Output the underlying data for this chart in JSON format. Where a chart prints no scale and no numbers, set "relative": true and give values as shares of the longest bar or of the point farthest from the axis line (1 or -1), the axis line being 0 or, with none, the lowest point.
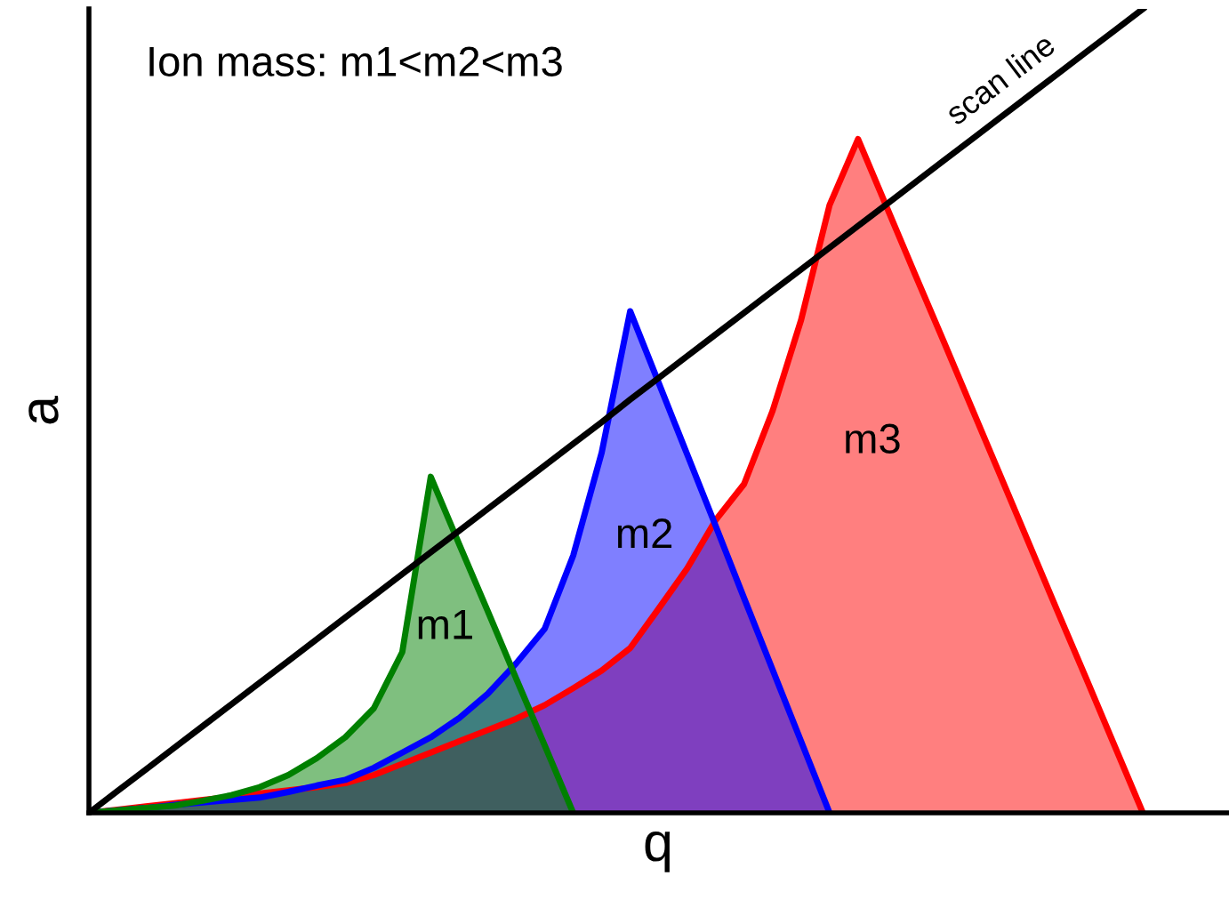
{
  "chart_data": {
    "type": "area",
    "relative": true,
    "xlabel": "q",
    "ylabel": "a",
    "annotations": [
      "Ion mass: m1<m2<m3"
    ],
    "categories": [
      null,
      null,
      null,
      null,
      null,
      null,
      null,
      null,
      null,
      null,
      null,
      null,
      null,
      null,
      null,
      null,
      null,
      null,
      null,
      null,
      null,
      null,
      null,
      null,
      null,
      null,
      null,
      null,
      null,
      null,
      null,
      null,
      null,
      null,
      null,
      null,
      null,
      null
    ],
    "series": [
      {
        "name": "m3",
        "color": "#ff0000",
        "values": [
          0,
          0.004,
          0.008,
          0.012,
          0.016,
          0.02,
          0.024,
          0.028,
          0.032,
          0.037,
          0.047,
          0.061,
          0.075,
          0.089,
          0.103,
          0.117,
          0.134,
          0.155,
          0.177,
          0.205,
          0.254,
          0.304,
          0.364,
          0.409,
          0.5,
          0.613,
          0.756,
          0.838,
          0.754,
          0.67,
          0.587,
          0.503,
          0.419,
          0.335,
          0.251,
          0.168,
          0.084,
          0
        ]
      },
      {
        "name": "m2",
        "color": "#0000ff",
        "values": [
          0,
          0.003,
          0.006,
          0.01,
          0.013,
          0.016,
          0.019,
          0.026,
          0.034,
          0.041,
          0.056,
          0.075,
          0.094,
          0.118,
          0.148,
          0.186,
          0.229,
          0.32,
          0.448,
          0.624,
          0.535,
          0.446,
          0.357,
          0.267,
          0.178,
          0.089,
          0,
          null,
          null,
          null,
          null,
          null,
          null,
          null,
          null,
          null,
          null,
          null
        ]
      },
      {
        "name": "m1",
        "color": "#008000",
        "values": [
          0,
          0.003,
          0.006,
          0.009,
          0.015,
          0.022,
          0.032,
          0.047,
          0.068,
          0.094,
          0.13,
          0.2,
          0.418,
          0.334,
          0.251,
          0.167,
          0.084,
          0,
          null,
          null,
          null,
          null,
          null,
          null,
          null,
          null,
          null,
          null,
          null,
          null,
          null,
          null,
          null,
          null,
          null,
          null,
          null,
          null
        ]
      },
      {
        "name": "scan line",
        "type": "line",
        "color": "#000000",
        "values": [
          0,
          0.027,
          0.054,
          0.081,
          0.108,
          0.135,
          0.162,
          0.189,
          0.216,
          0.243,
          0.27,
          0.297,
          0.324,
          0.351,
          0.378,
          0.405,
          0.432,
          0.459,
          0.486,
          0.514,
          0.541,
          0.568,
          0.595,
          0.622,
          0.649,
          0.676,
          0.703,
          0.73,
          0.757,
          0.784,
          0.811,
          0.838,
          0.865,
          0.892,
          0.919,
          0.946,
          0.973,
          1
        ]
      }
    ]
  }
}
